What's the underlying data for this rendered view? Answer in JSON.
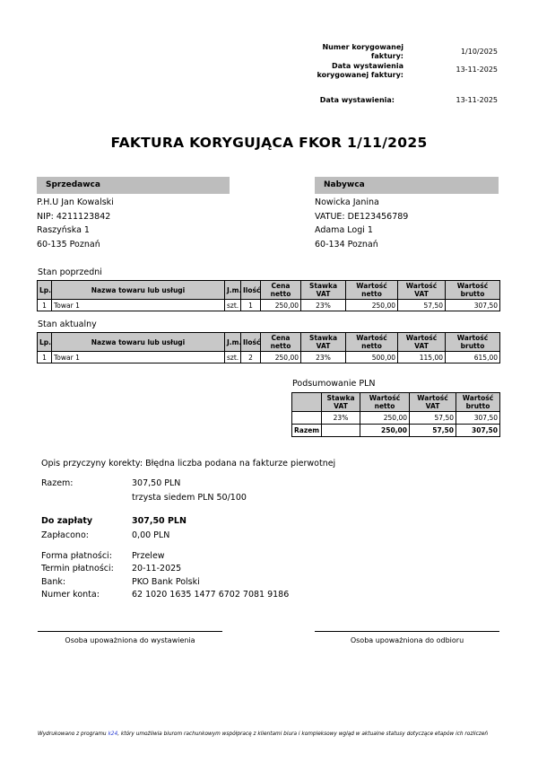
{
  "meta": [
    {
      "label": "Numer korygowanej faktury:",
      "value": "1/10/2025"
    },
    {
      "label": "Data wystawienia korygowanej faktury:",
      "value": "13-11-2025"
    },
    {
      "label": "Data wystawienia:",
      "value": "13-11-2025"
    }
  ],
  "title": "FAKTURA KORYGUJĄCA FKOR 1/11/2025",
  "seller": {
    "header": "Sprzedawca",
    "lines": [
      "P.H.U Jan Kowalski",
      "NIP: 4211123842",
      "Raszyńska 1",
      "60-135 Poznań"
    ]
  },
  "buyer": {
    "header": "Nabywca",
    "lines": [
      "Nowicka Janina",
      "VATUE: DE123456789",
      "Adama Logi 1",
      "60-134 Poznań"
    ]
  },
  "columns": [
    "Lp.",
    "Nazwa towaru lub usługi",
    "J.m.",
    "Ilość",
    "Cena netto",
    "Stawka VAT",
    "Wartość netto",
    "Wartość VAT",
    "Wartość brutto"
  ],
  "before": {
    "label": "Stan poprzedni",
    "rows": [
      [
        "1",
        "Towar 1",
        "szt.",
        "1",
        "250,00",
        "23%",
        "250,00",
        "57,50",
        "307,50"
      ]
    ]
  },
  "after": {
    "label": "Stan aktualny",
    "rows": [
      [
        "1",
        "Towar 1",
        "szt.",
        "2",
        "250,00",
        "23%",
        "500,00",
        "115,00",
        "615,00"
      ]
    ]
  },
  "summary": {
    "label": "Podsumowanie PLN",
    "columns": [
      "",
      "Stawka VAT",
      "Wartość netto",
      "Wartość VAT",
      "Wartość brutto"
    ],
    "rows": [
      [
        "",
        "23%",
        "250,00",
        "57,50",
        "307,50"
      ]
    ],
    "total": [
      "Razem",
      "",
      "250,00",
      "57,50",
      "307,50"
    ]
  },
  "reason": {
    "label": "Opis przyczyny korekty:",
    "value": "Błędna liczba podana na fakturze pierwotnej"
  },
  "razem": {
    "label": "Razem:",
    "value": "307,50 PLN",
    "words": "trzysta siedem PLN 50/100"
  },
  "do_zaplaty": {
    "label": "Do zapłaty",
    "value": "307,50 PLN"
  },
  "zaplacono": {
    "label": "Zapłacono:",
    "value": "0,00 PLN"
  },
  "payment": [
    {
      "label": "Forma płatności:",
      "value": "Przelew"
    },
    {
      "label": "Termin płatności:",
      "value": "20-11-2025"
    },
    {
      "label": "Bank:",
      "value": "PKO Bank Polski"
    },
    {
      "label": "Numer konta:",
      "value": "62 1020 1635 1477 6702 7081 9186"
    }
  ],
  "signatures": [
    "Osoba upoważniona do wystawienia",
    "Osoba upoważniona do odbioru"
  ],
  "footer": {
    "before": "Wydrukowano z programu ",
    "link": "k24",
    "after": ", który umożliwia biurom rachunkowym współpracę z klientami biura i kompleksowy wgląd w aktualne statusy dotyczące etapów ich rozliczeń"
  }
}
